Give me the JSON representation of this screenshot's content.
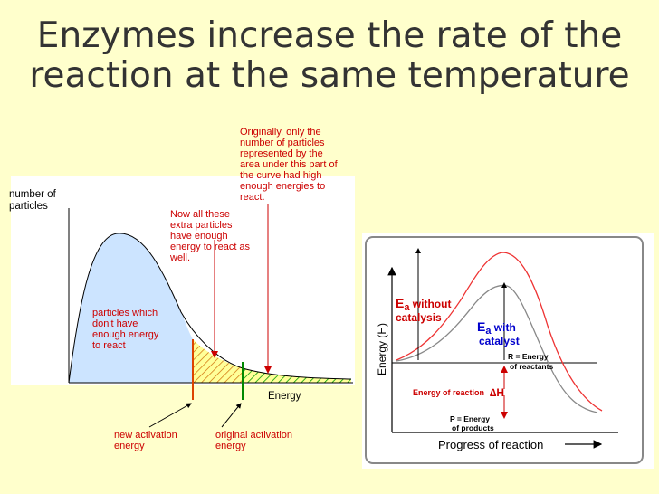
{
  "slide": {
    "title_line1": "Enzymes increase the rate of the",
    "title_line2": "reaction at the same temperature"
  },
  "left_diagram": {
    "ylabel_lines": [
      "number of",
      "particles"
    ],
    "xlabel": "Energy",
    "note_originally_lines": [
      "Originally, only the",
      "number of particles",
      "represented by the",
      "area under this part of",
      "the curve had high",
      "enough energies to",
      "react."
    ],
    "note_now_lines": [
      "Now all these",
      "extra particles",
      "have enough",
      "energy to react as",
      "well."
    ],
    "note_particles_lines": [
      "particles which",
      "don't have",
      "enough energy",
      "to react"
    ],
    "new_activation_lines": [
      "new activation",
      "energy"
    ],
    "original_activation_lines": [
      "original activation",
      "energy"
    ],
    "colors": {
      "curve": "#000000",
      "fill": "#cce4ff",
      "hatch_orange": "#cc6600",
      "hatch_green": "#009900",
      "new_line": "#dd4400",
      "orig_line": "#008800",
      "text": "#cc0000"
    }
  },
  "right_diagram": {
    "ylabel": "Energy (H)",
    "xlabel": "Progress of reaction",
    "ea_without": {
      "E": "E",
      "sub": "a",
      "rest": " without",
      "line2": "catalysis"
    },
    "ea_with": {
      "E": "E",
      "sub": "a",
      "rest": " with",
      "line2": "catalyst"
    },
    "r_label_lines": [
      "R = Energy",
      "of reactants"
    ],
    "energy_of_reaction": "Energy of reaction",
    "delta_h": "∆H",
    "p_label_lines": [
      "P = Energy",
      "of products"
    ],
    "colors": {
      "red_curve": "#ee3333",
      "gray_curve": "#888888",
      "red_text": "#cc0000",
      "blue_text": "#0000cc"
    }
  }
}
